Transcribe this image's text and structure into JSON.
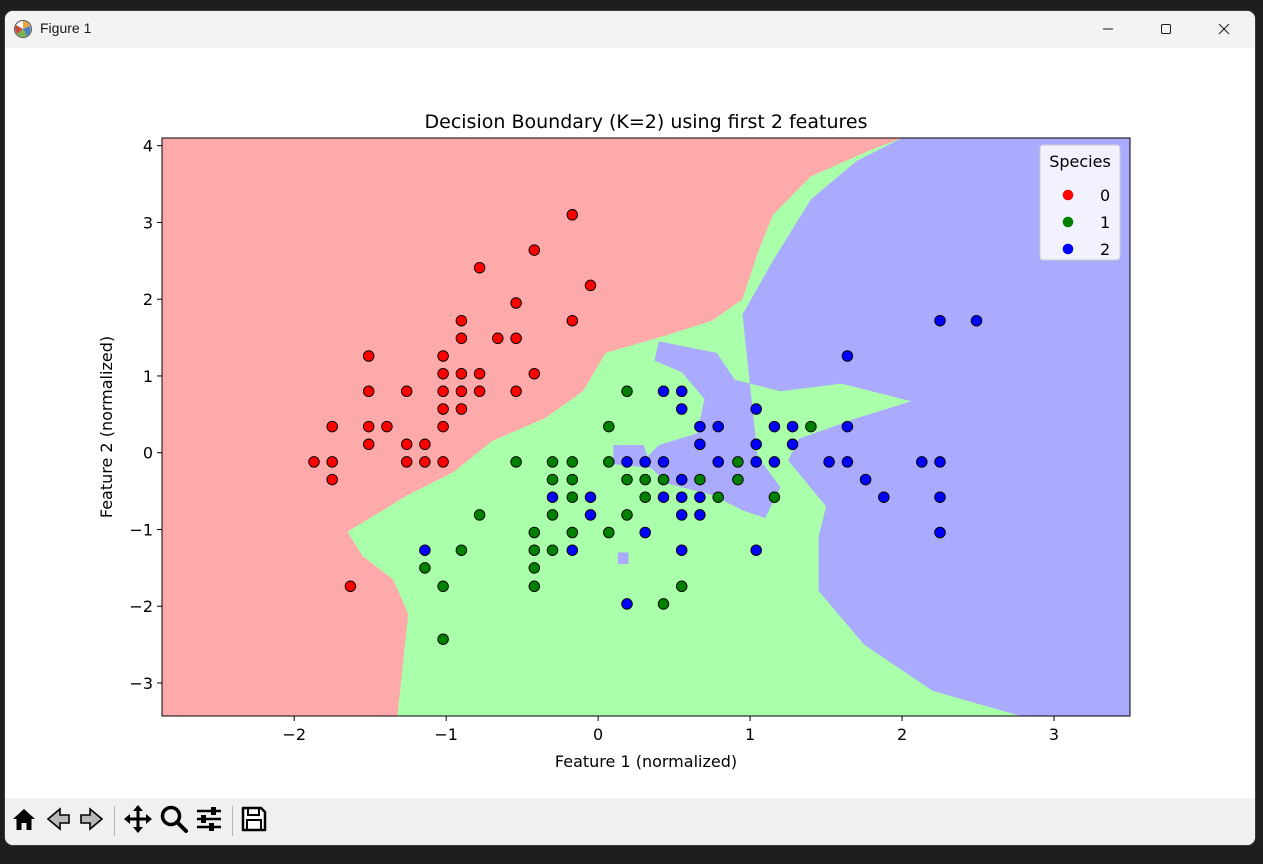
{
  "window": {
    "title": "Figure 1"
  },
  "icons": {
    "app": "matplotlib-icon",
    "minimize": "minimize-icon",
    "maximize": "maximize-icon",
    "close": "close-icon",
    "home": "home-icon",
    "back": "back-arrow-icon",
    "forward": "forward-arrow-icon",
    "pan": "pan-move-icon",
    "zoom": "zoom-magnifier-icon",
    "configure": "configure-subplots-icon",
    "save": "save-disk-icon"
  },
  "chart_data": {
    "type": "scatter",
    "title": "Decision Boundary (K=2) using first 2 features",
    "xlabel": "Feature 1 (normalized)",
    "ylabel": "Feature 2 (normalized)",
    "xlim": [
      -2.87,
      3.5
    ],
    "ylim": [
      -3.43,
      4.1
    ],
    "xticks": [
      -2,
      -1,
      0,
      1,
      2,
      3
    ],
    "yticks": [
      -3,
      -2,
      -1,
      0,
      1,
      2,
      3,
      4
    ],
    "grid": false,
    "legend": {
      "title": "Species",
      "placement": "top-right"
    },
    "region_colors": {
      "0": "#ffaaaa",
      "1": "#aaffaa",
      "2": "#aaaaff"
    },
    "series": [
      {
        "name": "0",
        "color": "#ff0000",
        "points": [
          [
            -0.17,
            3.1
          ],
          [
            -0.42,
            2.64
          ],
          [
            -0.78,
            2.41
          ],
          [
            -0.05,
            2.18
          ],
          [
            -0.54,
            1.95
          ],
          [
            -0.17,
            1.72
          ],
          [
            -0.9,
            1.72
          ],
          [
            -0.9,
            1.49
          ],
          [
            -0.66,
            1.49
          ],
          [
            -0.54,
            1.49
          ],
          [
            -1.51,
            1.26
          ],
          [
            -1.02,
            1.26
          ],
          [
            -1.02,
            1.03
          ],
          [
            -0.9,
            1.03
          ],
          [
            -0.78,
            1.03
          ],
          [
            -0.42,
            1.03
          ],
          [
            -1.51,
            0.8
          ],
          [
            -1.26,
            0.8
          ],
          [
            -1.02,
            0.8
          ],
          [
            -0.9,
            0.8
          ],
          [
            -0.78,
            0.8
          ],
          [
            -0.54,
            0.8
          ],
          [
            -1.02,
            0.57
          ],
          [
            -0.9,
            0.57
          ],
          [
            -1.75,
            0.34
          ],
          [
            -1.51,
            0.34
          ],
          [
            -1.39,
            0.34
          ],
          [
            -1.02,
            0.34
          ],
          [
            -1.51,
            0.11
          ],
          [
            -1.26,
            0.11
          ],
          [
            -1.14,
            0.11
          ],
          [
            -1.87,
            -0.12
          ],
          [
            -1.75,
            -0.12
          ],
          [
            -1.26,
            -0.12
          ],
          [
            -1.14,
            -0.12
          ],
          [
            -1.02,
            -0.12
          ],
          [
            -1.75,
            -0.35
          ],
          [
            -1.63,
            -1.74
          ]
        ]
      },
      {
        "name": "1",
        "color": "#008000",
        "points": [
          [
            0.19,
            0.8
          ],
          [
            0.07,
            0.34
          ],
          [
            -0.54,
            -0.12
          ],
          [
            -0.3,
            -0.12
          ],
          [
            -0.17,
            -0.12
          ],
          [
            0.07,
            -0.12
          ],
          [
            -0.3,
            -0.35
          ],
          [
            -0.17,
            -0.35
          ],
          [
            0.19,
            -0.35
          ],
          [
            0.31,
            -0.35
          ],
          [
            0.43,
            -0.35
          ],
          [
            0.67,
            -0.35
          ],
          [
            0.92,
            -0.35
          ],
          [
            -0.17,
            -0.58
          ],
          [
            0.31,
            -0.58
          ],
          [
            0.79,
            -0.58
          ],
          [
            1.16,
            -0.58
          ],
          [
            -0.78,
            -0.81
          ],
          [
            -0.3,
            -0.81
          ],
          [
            0.19,
            -0.81
          ],
          [
            -0.42,
            -1.04
          ],
          [
            -0.17,
            -1.04
          ],
          [
            0.07,
            -1.04
          ],
          [
            -0.42,
            -1.27
          ],
          [
            -0.3,
            -1.27
          ],
          [
            -0.9,
            -1.27
          ],
          [
            -1.14,
            -1.5
          ],
          [
            -0.42,
            -1.5
          ],
          [
            -1.02,
            -1.74
          ],
          [
            -0.42,
            -1.74
          ],
          [
            0.55,
            -1.74
          ],
          [
            0.43,
            -1.97
          ],
          [
            -1.02,
            -2.43
          ],
          [
            0.92,
            -0.12
          ],
          [
            1.4,
            0.34
          ]
        ]
      },
      {
        "name": "2",
        "color": "#0000ff",
        "points": [
          [
            2.25,
            1.72
          ],
          [
            2.49,
            1.72
          ],
          [
            1.64,
            1.26
          ],
          [
            0.43,
            0.8
          ],
          [
            0.55,
            0.8
          ],
          [
            0.55,
            0.57
          ],
          [
            1.04,
            0.57
          ],
          [
            0.67,
            0.34
          ],
          [
            0.79,
            0.34
          ],
          [
            1.16,
            0.34
          ],
          [
            1.28,
            0.34
          ],
          [
            1.64,
            0.34
          ],
          [
            0.67,
            0.11
          ],
          [
            1.04,
            0.11
          ],
          [
            1.28,
            0.11
          ],
          [
            0.19,
            -0.12
          ],
          [
            0.31,
            -0.12
          ],
          [
            0.79,
            -0.12
          ],
          [
            1.04,
            -0.12
          ],
          [
            1.16,
            -0.12
          ],
          [
            1.52,
            -0.12
          ],
          [
            1.64,
            -0.12
          ],
          [
            2.13,
            -0.12
          ],
          [
            2.25,
            -0.12
          ],
          [
            0.55,
            -0.35
          ],
          [
            1.76,
            -0.35
          ],
          [
            -0.3,
            -0.58
          ],
          [
            -0.05,
            -0.58
          ],
          [
            0.43,
            -0.58
          ],
          [
            0.55,
            -0.58
          ],
          [
            0.67,
            -0.58
          ],
          [
            1.88,
            -0.58
          ],
          [
            2.25,
            -0.58
          ],
          [
            -0.05,
            -0.81
          ],
          [
            0.55,
            -0.81
          ],
          [
            0.67,
            -0.81
          ],
          [
            2.25,
            -1.04
          ],
          [
            -1.14,
            -1.27
          ],
          [
            -0.17,
            -1.27
          ],
          [
            0.55,
            -1.27
          ],
          [
            1.04,
            -1.27
          ],
          [
            0.19,
            -1.97
          ],
          [
            0.43,
            -0.12
          ],
          [
            0.31,
            -1.04
          ]
        ]
      }
    ],
    "regions": {
      "red": [
        [
          -2.87,
          4.1
        ],
        [
          2.0,
          4.1
        ],
        [
          1.8,
          3.95
        ],
        [
          1.4,
          3.6
        ],
        [
          1.15,
          3.1
        ],
        [
          1.05,
          2.6
        ],
        [
          0.95,
          2.0
        ],
        [
          0.75,
          1.72
        ],
        [
          0.45,
          1.53
        ],
        [
          0.05,
          1.3
        ],
        [
          -0.1,
          0.8
        ],
        [
          -0.35,
          0.45
        ],
        [
          -0.7,
          0.15
        ],
        [
          -0.95,
          -0.25
        ],
        [
          -1.25,
          -0.55
        ],
        [
          -1.65,
          -1.03
        ],
        [
          -1.55,
          -1.35
        ],
        [
          -1.35,
          -1.65
        ],
        [
          -1.25,
          -2.1
        ],
        [
          -1.32,
          -3.43
        ],
        [
          -2.87,
          -3.43
        ]
      ],
      "blue": [
        [
          2.0,
          4.1
        ],
        [
          3.5,
          4.1
        ],
        [
          3.5,
          -3.43
        ],
        [
          2.78,
          -3.43
        ],
        [
          2.2,
          -3.1
        ],
        [
          1.75,
          -2.5
        ],
        [
          1.45,
          -1.8
        ],
        [
          1.45,
          -1.1
        ],
        [
          1.5,
          -0.7
        ],
        [
          1.25,
          -0.1
        ],
        [
          1.32,
          0.18
        ],
        [
          1.7,
          0.45
        ],
        [
          2.06,
          0.67
        ],
        [
          1.6,
          0.9
        ],
        [
          1.2,
          0.8
        ],
        [
          0.9,
          0.95
        ],
        [
          0.78,
          1.3
        ],
        [
          0.4,
          1.45
        ],
        [
          0.37,
          1.2
        ],
        [
          0.55,
          1.05
        ],
        [
          0.7,
          0.7
        ],
        [
          0.65,
          0.25
        ],
        [
          0.4,
          0.1
        ],
        [
          0.3,
          -0.1
        ],
        [
          0.45,
          -0.4
        ],
        [
          0.75,
          -0.55
        ],
        [
          0.95,
          -0.75
        ],
        [
          1.1,
          -0.85
        ],
        [
          1.2,
          -0.45
        ],
        [
          1.05,
          -0.05
        ],
        [
          0.95,
          1.8
        ],
        [
          1.15,
          2.5
        ],
        [
          1.4,
          3.3
        ],
        [
          1.7,
          3.8
        ]
      ],
      "blue_islands": [
        [
          [
            0.1,
            0.1
          ],
          [
            0.3,
            0.1
          ],
          [
            0.35,
            -0.2
          ],
          [
            0.1,
            -0.15
          ]
        ],
        [
          [
            0.13,
            -1.3
          ],
          [
            0.2,
            -1.3
          ],
          [
            0.2,
            -1.45
          ],
          [
            0.13,
            -1.45
          ]
        ]
      ]
    }
  }
}
